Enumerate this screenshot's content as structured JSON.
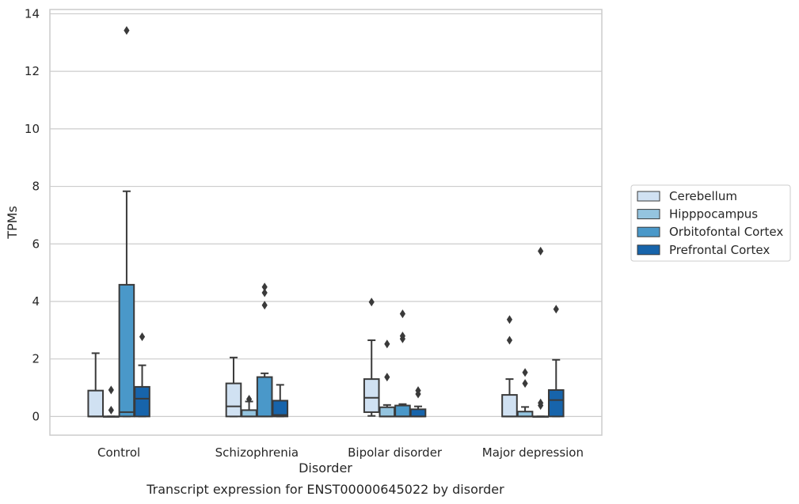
{
  "chart_data": {
    "type": "box",
    "caption": "Transcript expression for ENST00000645022 by disorder",
    "xlabel": "Disorder",
    "ylabel": "TPMs",
    "ylim": [
      -0.65,
      14.15
    ],
    "yticks": [
      0,
      2,
      4,
      6,
      8,
      10,
      12,
      14
    ],
    "grid": true,
    "legend_position": "right",
    "categories": [
      "Control",
      "Schizophrenia",
      "Bipolar disorder",
      "Major depression"
    ],
    "series": [
      {
        "name": "Cerebellum",
        "color": "#d0e1f2",
        "boxes": [
          {
            "q1": 0,
            "median": 0,
            "q3": 0.9,
            "whislo": 0,
            "whishi": 2.2,
            "fliers": []
          },
          {
            "q1": 0,
            "median": 0.35,
            "q3": 1.15,
            "whislo": 0,
            "whishi": 2.05,
            "fliers": []
          },
          {
            "q1": 0.15,
            "median": 0.65,
            "q3": 1.3,
            "whislo": 0.02,
            "whishi": 2.65,
            "fliers": [
              3.98
            ]
          },
          {
            "q1": 0,
            "median": 0,
            "q3": 0.75,
            "whislo": 0,
            "whishi": 1.3,
            "fliers": [
              2.65,
              3.37
            ]
          }
        ]
      },
      {
        "name": "Hipppocampus",
        "color": "#94c4df",
        "boxes": [
          {
            "q1": 0,
            "median": 0,
            "q3": 0,
            "whislo": 0,
            "whishi": 0,
            "fliers": [
              0.22,
              0.92
            ]
          },
          {
            "q1": 0,
            "median": 0,
            "q3": 0.22,
            "whislo": 0,
            "whishi": 0.52,
            "fliers": [
              0.6
            ]
          },
          {
            "q1": 0,
            "median": 0,
            "q3": 0.32,
            "whislo": 0,
            "whishi": 0.4,
            "fliers": [
              1.37,
              2.52
            ]
          },
          {
            "q1": 0,
            "median": 0,
            "q3": 0.17,
            "whislo": 0,
            "whishi": 0.33,
            "fliers": [
              1.15,
              1.53
            ]
          }
        ]
      },
      {
        "name": "Orbitofontal Cortex",
        "color": "#4a98c9",
        "boxes": [
          {
            "q1": 0,
            "median": 0.15,
            "q3": 4.58,
            "whislo": 0,
            "whishi": 7.83,
            "fliers": [
              13.42
            ]
          },
          {
            "q1": 0,
            "median": 0,
            "q3": 1.37,
            "whislo": 0,
            "whishi": 1.5,
            "fliers": [
              3.87,
              4.3,
              4.5
            ]
          },
          {
            "q1": 0,
            "median": 0,
            "q3": 0.38,
            "whislo": 0,
            "whishi": 0.43,
            "fliers": [
              2.7,
              2.8,
              3.57
            ]
          },
          {
            "q1": 0,
            "median": 0,
            "q3": 0,
            "whislo": 0,
            "whishi": 0,
            "fliers": [
              0.38,
              0.47,
              5.75
            ]
          }
        ]
      },
      {
        "name": "Prefrontal Cortex",
        "color": "#1764ab",
        "boxes": [
          {
            "q1": 0,
            "median": 0.62,
            "q3": 1.03,
            "whislo": 0,
            "whishi": 1.78,
            "fliers": [
              2.77
            ]
          },
          {
            "q1": 0,
            "median": 0.05,
            "q3": 0.55,
            "whislo": 0,
            "whishi": 1.1,
            "fliers": []
          },
          {
            "q1": 0,
            "median": 0,
            "q3": 0.25,
            "whislo": 0,
            "whishi": 0.35,
            "fliers": [
              0.78,
              0.9
            ]
          },
          {
            "q1": 0,
            "median": 0.57,
            "q3": 0.92,
            "whislo": 0,
            "whishi": 1.97,
            "fliers": [
              3.73
            ]
          }
        ]
      }
    ]
  }
}
